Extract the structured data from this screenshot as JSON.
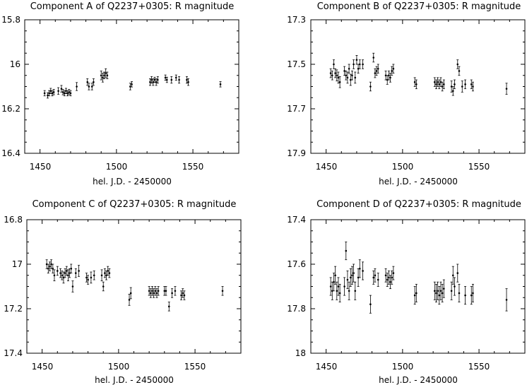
{
  "chart_data": [
    {
      "type": "scatter",
      "title": "Component A of Q2237+0305: R magnitude",
      "xlabel": "hel. J.D. - 2450000",
      "ylabel": "",
      "xlim": [
        1440,
        1580
      ],
      "ylim": [
        15.8,
        16.4
      ],
      "y_inverted": true,
      "xticks": [
        1450,
        1500,
        1550
      ],
      "yticks": [
        "15.8",
        "16",
        "16.2",
        "16.4"
      ],
      "error_bars": true,
      "points": [
        [
          1453,
          16.13,
          0.012
        ],
        [
          1455,
          16.14,
          0.012
        ],
        [
          1456,
          16.13,
          0.012
        ],
        [
          1457,
          16.12,
          0.012
        ],
        [
          1458,
          16.13,
          0.012
        ],
        [
          1459,
          16.125,
          0.012
        ],
        [
          1462,
          16.12,
          0.015
        ],
        [
          1464,
          16.11,
          0.015
        ],
        [
          1465,
          16.125,
          0.012
        ],
        [
          1466,
          16.13,
          0.012
        ],
        [
          1467,
          16.12,
          0.012
        ],
        [
          1468,
          16.13,
          0.012
        ],
        [
          1469,
          16.125,
          0.012
        ],
        [
          1470,
          16.13,
          0.012
        ],
        [
          1474,
          16.1,
          0.018
        ],
        [
          1481,
          16.08,
          0.015
        ],
        [
          1482,
          16.1,
          0.015
        ],
        [
          1484,
          16.1,
          0.015
        ],
        [
          1485,
          16.08,
          0.015
        ],
        [
          1490,
          16.05,
          0.02
        ],
        [
          1491,
          16.06,
          0.02
        ],
        [
          1492,
          16.05,
          0.015
        ],
        [
          1493,
          16.04,
          0.02
        ],
        [
          1494,
          16.05,
          0.015
        ],
        [
          1509,
          16.1,
          0.015
        ],
        [
          1510,
          16.09,
          0.012
        ],
        [
          1522,
          16.08,
          0.015
        ],
        [
          1523,
          16.07,
          0.015
        ],
        [
          1524,
          16.08,
          0.015
        ],
        [
          1525,
          16.07,
          0.012
        ],
        [
          1526,
          16.08,
          0.015
        ],
        [
          1527,
          16.07,
          0.015
        ],
        [
          1532,
          16.06,
          0.012
        ],
        [
          1533,
          16.07,
          0.012
        ],
        [
          1536,
          16.07,
          0.015
        ],
        [
          1539,
          16.06,
          0.012
        ],
        [
          1541,
          16.07,
          0.015
        ],
        [
          1546,
          16.07,
          0.015
        ],
        [
          1547,
          16.08,
          0.015
        ],
        [
          1568,
          16.09,
          0.012
        ]
      ]
    },
    {
      "type": "scatter",
      "title": "Component B of Q2237+0305: R magnitude",
      "xlabel": "hel. J.D. - 2450000",
      "ylabel": "",
      "xlim": [
        1440,
        1580
      ],
      "ylim": [
        17.3,
        17.9
      ],
      "y_inverted": true,
      "xticks": [
        1450,
        1500,
        1550
      ],
      "yticks": [
        "17.3",
        "17.5",
        "17.7",
        "17.9"
      ],
      "error_bars": true,
      "points": [
        [
          1453,
          17.54,
          0.02
        ],
        [
          1454,
          17.55,
          0.02
        ],
        [
          1455,
          17.5,
          0.02
        ],
        [
          1456,
          17.54,
          0.02
        ],
        [
          1457,
          17.55,
          0.025
        ],
        [
          1458,
          17.56,
          0.025
        ],
        [
          1459,
          17.58,
          0.025
        ],
        [
          1462,
          17.53,
          0.02
        ],
        [
          1463,
          17.55,
          0.02
        ],
        [
          1464,
          17.56,
          0.025
        ],
        [
          1465,
          17.52,
          0.02
        ],
        [
          1466,
          17.57,
          0.025
        ],
        [
          1467,
          17.55,
          0.02
        ],
        [
          1468,
          17.5,
          0.02
        ],
        [
          1469,
          17.56,
          0.025
        ],
        [
          1470,
          17.48,
          0.02
        ],
        [
          1471,
          17.52,
          0.02
        ],
        [
          1472,
          17.5,
          0.02
        ],
        [
          1474,
          17.5,
          0.02
        ],
        [
          1479,
          17.6,
          0.02
        ],
        [
          1481,
          17.47,
          0.02
        ],
        [
          1482,
          17.54,
          0.02
        ],
        [
          1483,
          17.53,
          0.02
        ],
        [
          1484,
          17.52,
          0.02
        ],
        [
          1489,
          17.55,
          0.02
        ],
        [
          1490,
          17.57,
          0.02
        ],
        [
          1491,
          17.55,
          0.02
        ],
        [
          1492,
          17.56,
          0.02
        ],
        [
          1493,
          17.53,
          0.02
        ],
        [
          1494,
          17.52,
          0.02
        ],
        [
          1508,
          17.58,
          0.02
        ],
        [
          1509,
          17.59,
          0.02
        ],
        [
          1521,
          17.58,
          0.02
        ],
        [
          1522,
          17.59,
          0.02
        ],
        [
          1523,
          17.58,
          0.02
        ],
        [
          1524,
          17.59,
          0.02
        ],
        [
          1525,
          17.58,
          0.02
        ],
        [
          1526,
          17.6,
          0.02
        ],
        [
          1527,
          17.59,
          0.02
        ],
        [
          1532,
          17.6,
          0.025
        ],
        [
          1533,
          17.62,
          0.02
        ],
        [
          1534,
          17.59,
          0.02
        ],
        [
          1536,
          17.5,
          0.02
        ],
        [
          1537,
          17.53,
          0.02
        ],
        [
          1539,
          17.6,
          0.025
        ],
        [
          1541,
          17.59,
          0.02
        ],
        [
          1545,
          17.59,
          0.02
        ],
        [
          1546,
          17.6,
          0.02
        ],
        [
          1568,
          17.61,
          0.025
        ]
      ]
    },
    {
      "type": "scatter",
      "title": "Component C of Q2237+0305: R magnitude",
      "xlabel": "hel. J.D. - 2450000",
      "ylabel": "",
      "xlim": [
        1440,
        1580
      ],
      "ylim": [
        16.8,
        17.4
      ],
      "y_inverted": true,
      "xticks": [
        1450,
        1500,
        1550
      ],
      "yticks": [
        "16.8",
        "17",
        "17.2",
        "17.4"
      ],
      "error_bars": true,
      "points": [
        [
          1453,
          17.0,
          0.02
        ],
        [
          1454,
          17.02,
          0.02
        ],
        [
          1455,
          17.01,
          0.02
        ],
        [
          1456,
          17.0,
          0.02
        ],
        [
          1457,
          17.02,
          0.02
        ],
        [
          1458,
          17.05,
          0.025
        ],
        [
          1460,
          17.03,
          0.02
        ],
        [
          1462,
          17.04,
          0.02
        ],
        [
          1463,
          17.05,
          0.02
        ],
        [
          1464,
          17.06,
          0.025
        ],
        [
          1465,
          17.04,
          0.02
        ],
        [
          1466,
          17.03,
          0.02
        ],
        [
          1467,
          17.05,
          0.025
        ],
        [
          1468,
          17.04,
          0.02
        ],
        [
          1469,
          17.02,
          0.02
        ],
        [
          1470,
          17.1,
          0.025
        ],
        [
          1472,
          17.04,
          0.02
        ],
        [
          1474,
          17.03,
          0.025
        ],
        [
          1479,
          17.06,
          0.02
        ],
        [
          1480,
          17.07,
          0.02
        ],
        [
          1482,
          17.06,
          0.025
        ],
        [
          1484,
          17.05,
          0.02
        ],
        [
          1489,
          17.05,
          0.025
        ],
        [
          1490,
          17.1,
          0.02
        ],
        [
          1491,
          17.04,
          0.02
        ],
        [
          1492,
          17.05,
          0.02
        ],
        [
          1493,
          17.03,
          0.02
        ],
        [
          1494,
          17.04,
          0.02
        ],
        [
          1507,
          17.16,
          0.025
        ],
        [
          1508,
          17.13,
          0.025
        ],
        [
          1520,
          17.12,
          0.02
        ],
        [
          1521,
          17.13,
          0.02
        ],
        [
          1522,
          17.12,
          0.02
        ],
        [
          1523,
          17.13,
          0.02
        ],
        [
          1524,
          17.12,
          0.02
        ],
        [
          1525,
          17.13,
          0.02
        ],
        [
          1526,
          17.12,
          0.02
        ],
        [
          1530,
          17.12,
          0.02
        ],
        [
          1531,
          17.12,
          0.02
        ],
        [
          1533,
          17.19,
          0.02
        ],
        [
          1535,
          17.13,
          0.02
        ],
        [
          1537,
          17.12,
          0.02
        ],
        [
          1541,
          17.14,
          0.02
        ],
        [
          1542,
          17.13,
          0.02
        ],
        [
          1543,
          17.14,
          0.02
        ],
        [
          1568,
          17.12,
          0.02
        ]
      ]
    },
    {
      "type": "scatter",
      "title": "Component D of Q2237+0305: R magnitude",
      "xlabel": "hel. J.D. - 2450000",
      "ylabel": "",
      "xlim": [
        1440,
        1580
      ],
      "ylim": [
        17.4,
        18.0
      ],
      "y_inverted": true,
      "xticks": [
        1450,
        1500,
        1550
      ],
      "yticks": [
        "17.4",
        "17.6",
        "17.8",
        "18"
      ],
      "error_bars": true,
      "points": [
        [
          1453,
          17.7,
          0.04
        ],
        [
          1454,
          17.72,
          0.04
        ],
        [
          1455,
          17.68,
          0.04
        ],
        [
          1456,
          17.65,
          0.04
        ],
        [
          1457,
          17.72,
          0.04
        ],
        [
          1458,
          17.7,
          0.04
        ],
        [
          1459,
          17.73,
          0.04
        ],
        [
          1462,
          17.7,
          0.04
        ],
        [
          1463,
          17.54,
          0.04
        ],
        [
          1464,
          17.67,
          0.04
        ],
        [
          1465,
          17.72,
          0.04
        ],
        [
          1466,
          17.66,
          0.04
        ],
        [
          1467,
          17.65,
          0.04
        ],
        [
          1468,
          17.64,
          0.04
        ],
        [
          1469,
          17.72,
          0.04
        ],
        [
          1471,
          17.66,
          0.04
        ],
        [
          1472,
          17.62,
          0.04
        ],
        [
          1474,
          17.63,
          0.04
        ],
        [
          1479,
          17.78,
          0.04
        ],
        [
          1481,
          17.66,
          0.03
        ],
        [
          1482,
          17.65,
          0.03
        ],
        [
          1484,
          17.67,
          0.03
        ],
        [
          1489,
          17.65,
          0.03
        ],
        [
          1490,
          17.67,
          0.03
        ],
        [
          1491,
          17.66,
          0.03
        ],
        [
          1492,
          17.68,
          0.03
        ],
        [
          1493,
          17.66,
          0.03
        ],
        [
          1494,
          17.64,
          0.03
        ],
        [
          1508,
          17.74,
          0.04
        ],
        [
          1509,
          17.73,
          0.04
        ],
        [
          1521,
          17.72,
          0.04
        ],
        [
          1522,
          17.73,
          0.04
        ],
        [
          1523,
          17.72,
          0.04
        ],
        [
          1524,
          17.74,
          0.04
        ],
        [
          1525,
          17.72,
          0.04
        ],
        [
          1526,
          17.73,
          0.04
        ],
        [
          1527,
          17.71,
          0.04
        ],
        [
          1532,
          17.72,
          0.04
        ],
        [
          1533,
          17.65,
          0.04
        ],
        [
          1534,
          17.7,
          0.04
        ],
        [
          1536,
          17.64,
          0.04
        ],
        [
          1537,
          17.73,
          0.04
        ],
        [
          1541,
          17.74,
          0.04
        ],
        [
          1545,
          17.74,
          0.04
        ],
        [
          1546,
          17.73,
          0.04
        ],
        [
          1568,
          17.76,
          0.05
        ]
      ]
    }
  ]
}
